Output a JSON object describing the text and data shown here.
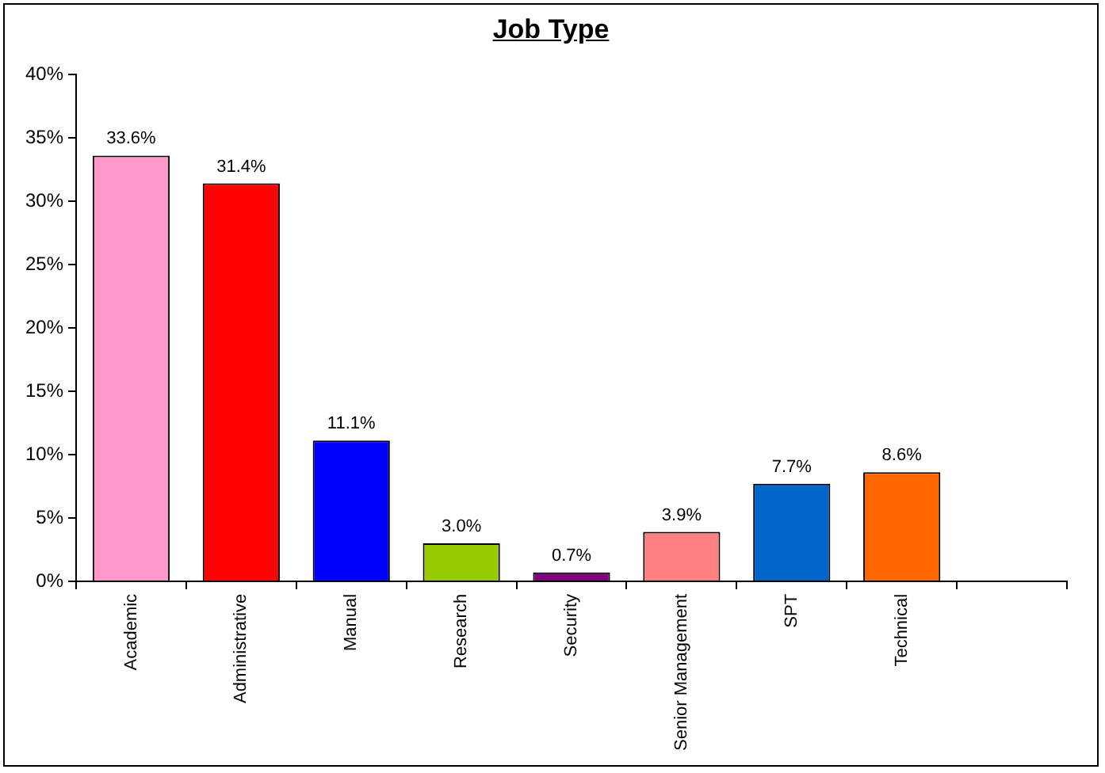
{
  "chart_data": {
    "type": "bar",
    "title": "Job Type",
    "categories": [
      "Academic",
      "Administrative",
      "Manual",
      "Research",
      "Security",
      "Senior Management",
      "SPT",
      "Technical",
      null
    ],
    "values": [
      33.6,
      31.4,
      11.1,
      3.0,
      0.7,
      3.9,
      7.7,
      8.6,
      null
    ],
    "colors": [
      "#ff99cc",
      "#ff0000",
      "#0000ff",
      "#99cc00",
      "#800080",
      "#ff8080",
      "#0066cc",
      "#ff6600",
      "#ffffff"
    ],
    "value_labels": [
      "33.6%",
      "31.4%",
      "11.1%",
      "3.0%",
      "0.7%",
      "3.9%",
      "7.7%",
      "8.6%",
      null
    ],
    "ylim": [
      0,
      40
    ],
    "yticks": [
      {
        "value": 0,
        "label": "0%"
      },
      {
        "value": 5,
        "label": "5%"
      },
      {
        "value": 10,
        "label": "10%"
      },
      {
        "value": 15,
        "label": "15%"
      },
      {
        "value": 20,
        "label": "20%"
      },
      {
        "value": 25,
        "label": "25%"
      },
      {
        "value": 30,
        "label": "30%"
      },
      {
        "value": 35,
        "label": "35%"
      },
      {
        "value": 40,
        "label": "40%"
      }
    ],
    "grid": false,
    "legend": false
  }
}
